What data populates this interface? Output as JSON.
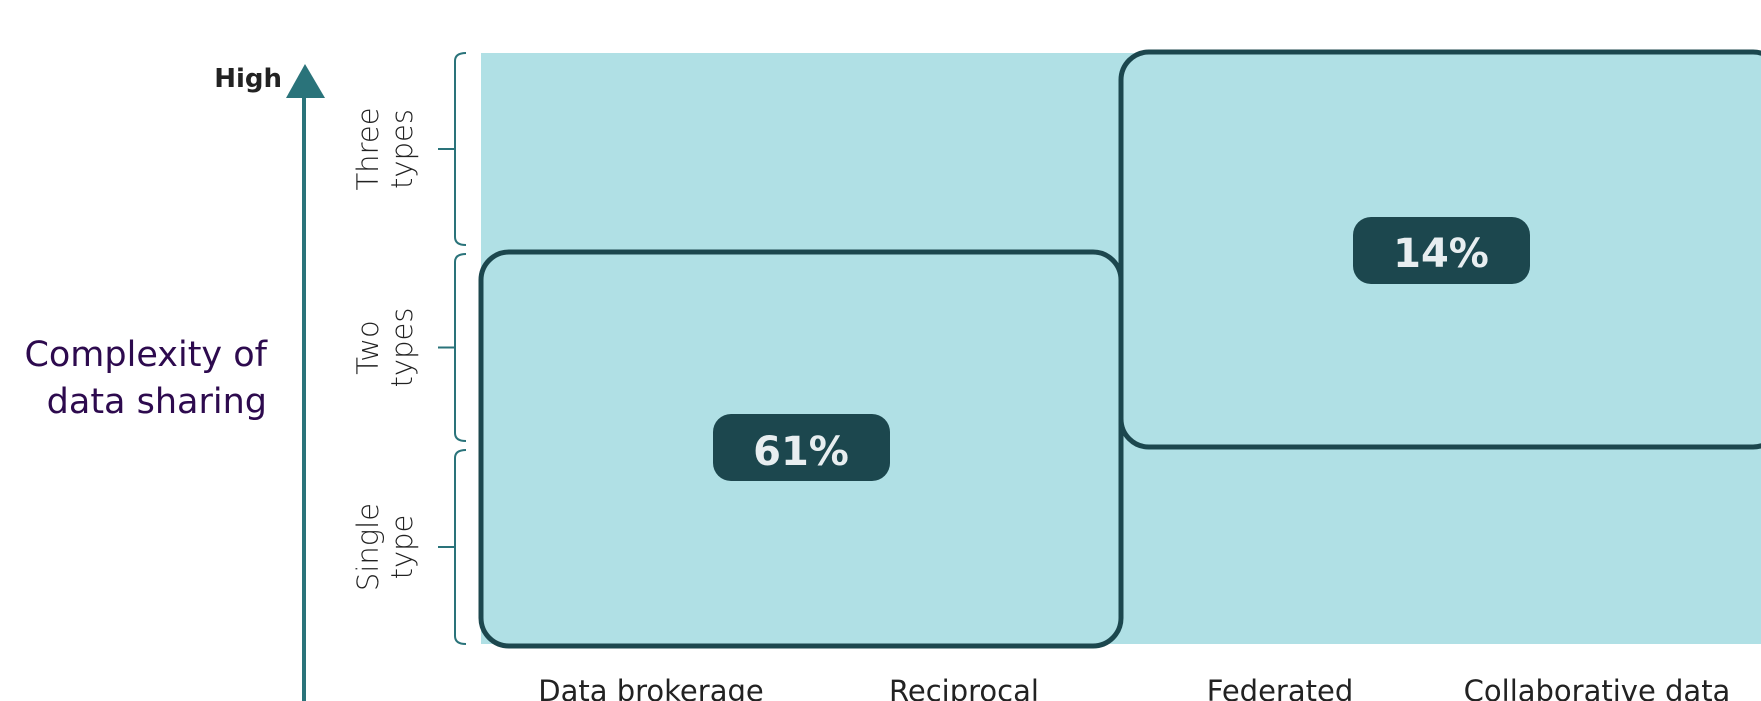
{
  "axis": {
    "high": "High",
    "title": [
      "Complexity of",
      "data sharing"
    ]
  },
  "rows": [
    [
      "Three",
      "types"
    ],
    [
      "Two",
      "types"
    ],
    [
      "Single",
      "type"
    ]
  ],
  "columns": [
    "Data brokerage",
    "Reciprocal",
    "Federated",
    "Collaborative data"
  ],
  "groups": [
    {
      "label": "61%"
    },
    {
      "label": "14%"
    }
  ]
}
